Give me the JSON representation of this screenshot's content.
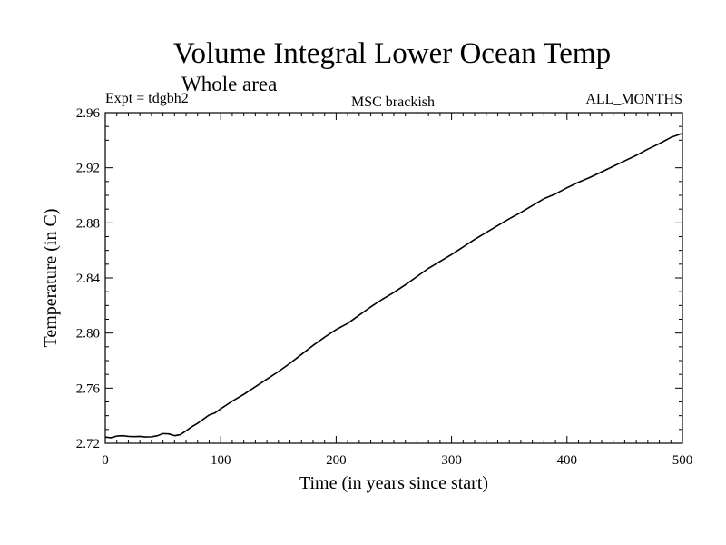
{
  "chart_data": {
    "type": "line",
    "title": "Volume Integral Lower Ocean Temp",
    "subtitle": "Whole area",
    "annotations": {
      "left": "Expt = tdgbh2",
      "center": "MSC brackish",
      "right": "ALL_MONTHS"
    },
    "xlabel": "Time (in years since start)",
    "ylabel": "Temperature (in C)",
    "xlim": [
      0,
      500
    ],
    "ylim": [
      2.72,
      2.96
    ],
    "xticks": [
      0,
      100,
      200,
      300,
      400,
      500
    ],
    "xtick_labels": [
      "0",
      "100",
      "200",
      "300",
      "400",
      "500"
    ],
    "yticks": [
      2.72,
      2.76,
      2.8,
      2.84,
      2.88,
      2.92,
      2.96
    ],
    "ytick_labels": [
      "2.72",
      "2.76",
      "2.80",
      "2.84",
      "2.88",
      "2.92",
      "2.96"
    ],
    "grid": false,
    "series": [
      {
        "name": "Lower Ocean Temp",
        "x": [
          0,
          5,
          10,
          15,
          20,
          25,
          30,
          35,
          40,
          45,
          50,
          55,
          60,
          65,
          70,
          75,
          80,
          85,
          90,
          95,
          100,
          110,
          120,
          130,
          140,
          150,
          160,
          170,
          180,
          190,
          200,
          210,
          220,
          230,
          240,
          250,
          260,
          270,
          280,
          290,
          300,
          310,
          320,
          330,
          340,
          350,
          360,
          370,
          380,
          390,
          400,
          410,
          420,
          430,
          440,
          450,
          460,
          470,
          480,
          490,
          500
        ],
        "values": [
          2.7245,
          2.724,
          2.7252,
          2.7255,
          2.725,
          2.7248,
          2.725,
          2.7246,
          2.7247,
          2.7254,
          2.727,
          2.7268,
          2.7255,
          2.7262,
          2.729,
          2.732,
          2.7345,
          2.7375,
          2.7405,
          2.742,
          2.745,
          2.7505,
          2.7555,
          2.761,
          2.7665,
          2.772,
          2.778,
          2.7845,
          2.791,
          2.797,
          2.8025,
          2.807,
          2.813,
          2.819,
          2.8245,
          2.8295,
          2.835,
          2.841,
          2.847,
          2.852,
          2.857,
          2.8625,
          2.868,
          2.873,
          2.878,
          2.883,
          2.8875,
          2.8925,
          2.8975,
          2.901,
          2.9055,
          2.9095,
          2.913,
          2.917,
          2.921,
          2.925,
          2.929,
          2.9335,
          2.9375,
          2.942,
          2.945
        ]
      }
    ]
  }
}
